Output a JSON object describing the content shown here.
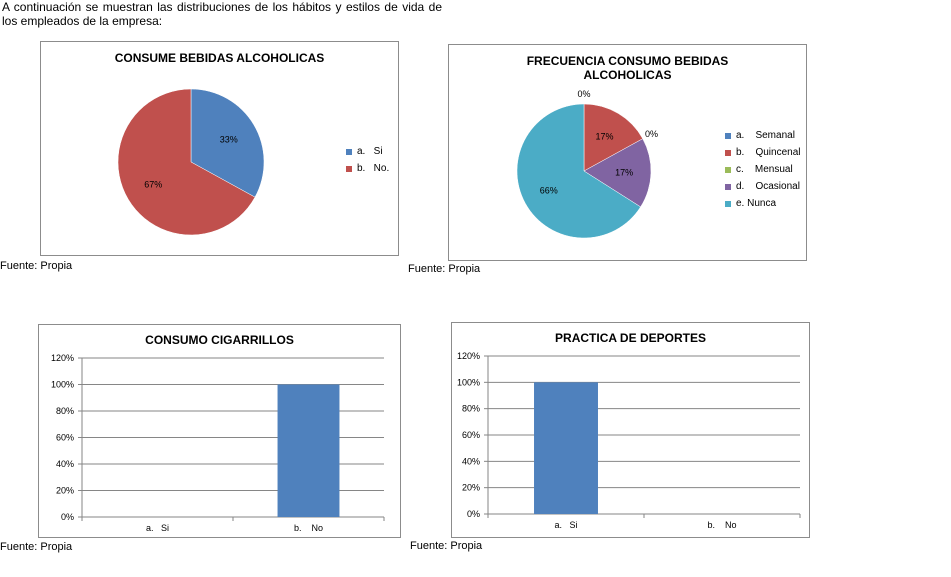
{
  "intro_text": "A continuación se muestran las distribuciones de los hábitos y estilos de vida de los empleados de la empresa:",
  "source_label": "Fuente: Propia",
  "chart_data": [
    {
      "type": "pie",
      "title": "CONSUME BEBIDAS ALCOHOLICAS",
      "labels": [
        "a.   Si",
        "b.   No."
      ],
      "values": [
        33,
        67
      ],
      "data_labels": [
        "33%",
        "67%"
      ],
      "colors": [
        "#4f81bd",
        "#c0504d"
      ],
      "legend": "right"
    },
    {
      "type": "pie",
      "title": "FRECUENCIA CONSUMO BEBIDAS ALCOHOLICAS",
      "labels": [
        "a.    Semanal",
        "b.    Quincenal",
        "c.    Mensual",
        "d.    Ocasional",
        "e. Nunca"
      ],
      "values": [
        0,
        17,
        0,
        17,
        66
      ],
      "data_labels": [
        "0%",
        "17%",
        "0%",
        "17%",
        "66%"
      ],
      "colors": [
        "#4f81bd",
        "#c0504d",
        "#9bbb59",
        "#8064a2",
        "#4bacc6"
      ],
      "legend": "right"
    },
    {
      "type": "bar",
      "title": "CONSUMO CIGARRILLOS",
      "categories": [
        "a.   Si",
        "b.    No"
      ],
      "values": [
        0,
        100
      ],
      "ylim": [
        0,
        120
      ],
      "yticks": [
        "0%",
        "20%",
        "40%",
        "60%",
        "80%",
        "100%",
        "120%"
      ],
      "grid": true,
      "color": "#4f81bd"
    },
    {
      "type": "bar",
      "title": "PRACTICA DE DEPORTES",
      "categories": [
        "a.   Si",
        "b.    No"
      ],
      "values": [
        100,
        0
      ],
      "ylim": [
        0,
        120
      ],
      "yticks": [
        "0%",
        "20%",
        "40%",
        "60%",
        "80%",
        "100%",
        "120%"
      ],
      "grid": true,
      "color": "#4f81bd"
    }
  ]
}
